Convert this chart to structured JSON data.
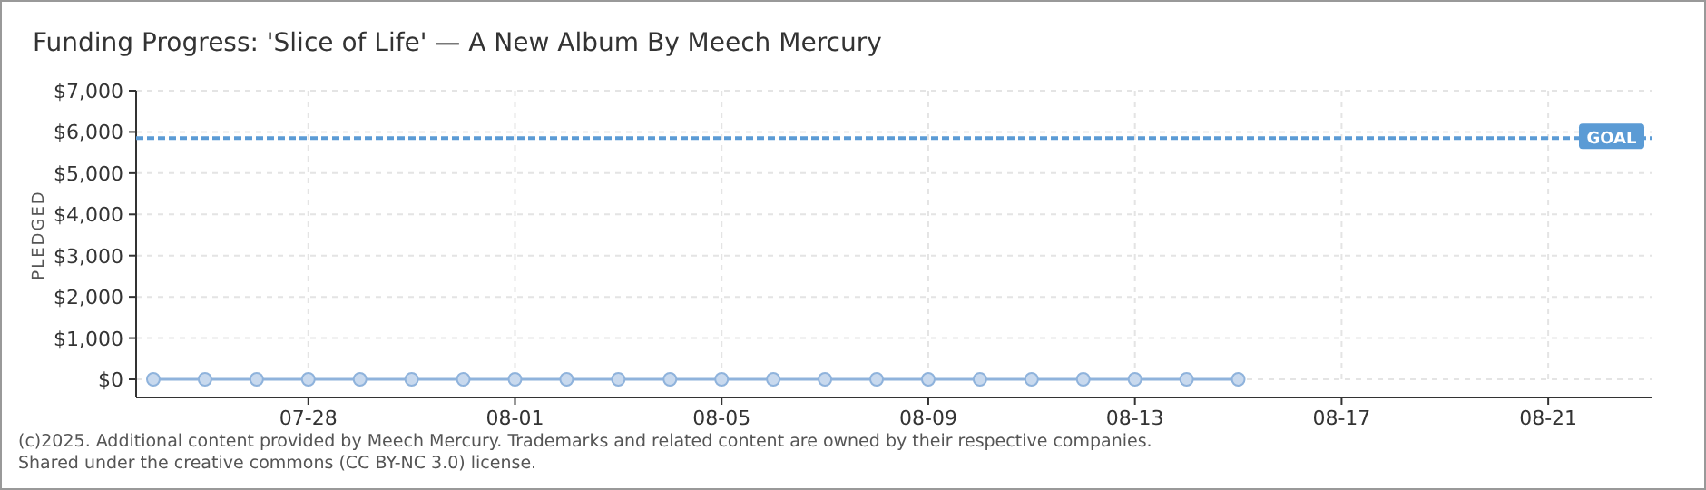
{
  "chart_data": {
    "type": "line",
    "title": "Funding Progress: 'Slice of Life' — A New Album By Meech Mercury",
    "ylabel": "PLEDGED",
    "x": [
      "2025-07-25",
      "2025-07-26",
      "2025-07-27",
      "2025-07-28",
      "2025-07-29",
      "2025-07-30",
      "2025-07-31",
      "2025-08-01",
      "2025-08-02",
      "2025-08-03",
      "2025-08-04",
      "2025-08-05",
      "2025-08-06",
      "2025-08-07",
      "2025-08-08",
      "2025-08-09",
      "2025-08-10",
      "2025-08-11",
      "2025-08-12",
      "2025-08-13",
      "2025-08-14",
      "2025-08-15"
    ],
    "series": [
      {
        "color": "#8fb3dc",
        "values": [
          0,
          0,
          0,
          0,
          0,
          0,
          0,
          0,
          0,
          0,
          0,
          0,
          0,
          0,
          0,
          0,
          0,
          0,
          0,
          0,
          0,
          0
        ]
      }
    ],
    "xlim": [
      "2025-07-24T16:00",
      "2025-08-23"
    ],
    "xticks": [
      {
        "value": "2025-07-28",
        "label": "07-28"
      },
      {
        "value": "2025-08-01",
        "label": "08-01"
      },
      {
        "value": "2025-08-05",
        "label": "08-05"
      },
      {
        "value": "2025-08-09",
        "label": "08-09"
      },
      {
        "value": "2025-08-13",
        "label": "08-13"
      },
      {
        "value": "2025-08-17",
        "label": "08-17"
      },
      {
        "value": "2025-08-21",
        "label": "08-21"
      }
    ],
    "ylim": [
      0,
      7000
    ],
    "yticks": [
      {
        "value": 0,
        "label": "$0"
      },
      {
        "value": 1000,
        "label": "$1,000"
      },
      {
        "value": 2000,
        "label": "$2,000"
      },
      {
        "value": 3000,
        "label": "$3,000"
      },
      {
        "value": 4000,
        "label": "$4,000"
      },
      {
        "value": 5000,
        "label": "$5,000"
      },
      {
        "value": 6000,
        "label": "$6,000"
      },
      {
        "value": 7000,
        "label": "$7,000"
      }
    ],
    "ref_lines": [
      {
        "axis": "y",
        "value": 5850,
        "label": "GOAL",
        "color": "#5b9bd5",
        "line_style": "dashed"
      }
    ],
    "grid": true,
    "marker": "circle",
    "line_style": "solid",
    "annotations": [
      "(c)2025. Additional content provided by Meech Mercury. Trademarks and related content are owned by their respective companies.",
      "Shared under the creative commons (CC BY-NC 3.0) license."
    ]
  }
}
